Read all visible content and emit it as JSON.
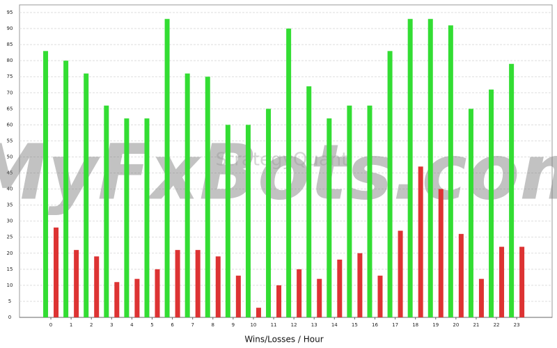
{
  "chart_data": {
    "type": "bar",
    "xlabel": "Wins/Losses / Hour",
    "watermarks": [
      "MyFxBots.com",
      "StrategyQuant"
    ],
    "categories": [
      "0",
      "1",
      "2",
      "3",
      "4",
      "5",
      "6",
      "7",
      "8",
      "9",
      "10",
      "11",
      "12",
      "13",
      "14",
      "15",
      "16",
      "17",
      "18",
      "19",
      "20",
      "21",
      "22",
      "23"
    ],
    "series": [
      {
        "color": "#33dd33",
        "values": [
          83,
          80,
          76,
          66,
          62,
          62,
          93,
          76,
          75,
          60,
          60,
          65,
          90,
          72,
          62,
          66,
          66,
          83,
          93,
          93,
          91,
          65,
          71,
          79
        ]
      },
      {
        "color": "#dd3333",
        "values": [
          28,
          21,
          19,
          11,
          12,
          15,
          21,
          21,
          19,
          13,
          3,
          10,
          15,
          12,
          18,
          20,
          13,
          27,
          47,
          40,
          26,
          12,
          22,
          22
        ]
      }
    ],
    "ylim": [
      0,
      95
    ],
    "yticks": [
      0,
      5,
      10,
      15,
      20,
      25,
      30,
      35,
      40,
      45,
      50,
      55,
      60,
      65,
      70,
      75,
      80,
      85,
      90,
      95
    ],
    "grid": true
  }
}
